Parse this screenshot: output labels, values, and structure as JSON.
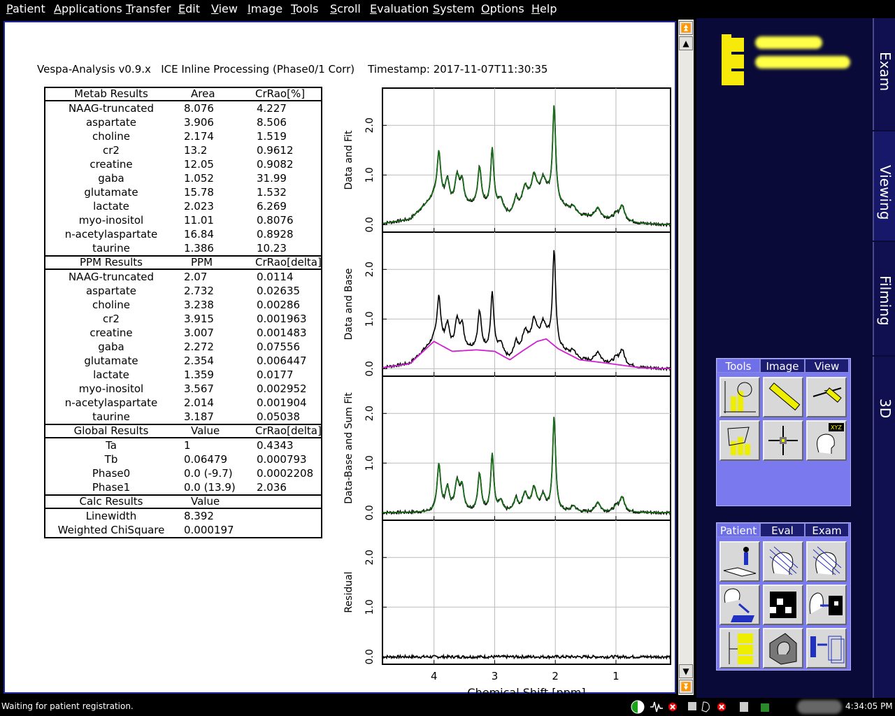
{
  "menubar": [
    {
      "u": "P",
      "rest": "atient"
    },
    {
      "u": "A",
      "rest": "pplications"
    },
    {
      "u": "T",
      "rest": "ransfer"
    },
    {
      "u": "E",
      "rest": "dit"
    },
    {
      "u": "V",
      "rest": "iew"
    },
    {
      "u": "I",
      "rest": "mage"
    },
    {
      "u": "T",
      "rest": "ools"
    },
    {
      "u": "S",
      "rest": "croll"
    },
    {
      "u": "E",
      "rest": "valuation"
    },
    {
      "u": "S",
      "rest": "ystem"
    },
    {
      "u": "O",
      "rest": "ptions"
    },
    {
      "u": "H",
      "rest": "elp"
    }
  ],
  "report": {
    "header": "Vespa-Analysis v0.9.x   ICE Inline Processing (Phase0/1 Corr)    Timestamp: 2017-11-07T11:30:35",
    "sections": [
      {
        "headers": [
          "Metab Results",
          "Area",
          "CrRao[%]"
        ],
        "rows": [
          [
            "NAAG-truncated",
            "8.076",
            "4.227"
          ],
          [
            "aspartate",
            "3.906",
            "8.506"
          ],
          [
            "choline",
            "2.174",
            "1.519"
          ],
          [
            "cr2",
            "13.2",
            "0.9612"
          ],
          [
            "creatine",
            "12.05",
            "0.9082"
          ],
          [
            "gaba",
            "1.052",
            "31.99"
          ],
          [
            "glutamate",
            "15.78",
            "1.532"
          ],
          [
            "lactate",
            "2.023",
            "6.269"
          ],
          [
            "myo-inositol",
            "11.01",
            "0.8076"
          ],
          [
            "n-acetylaspartate",
            "16.84",
            "0.8928"
          ],
          [
            "taurine",
            "1.386",
            "10.23"
          ]
        ]
      },
      {
        "headers": [
          "PPM Results",
          "PPM",
          "CrRao[delta]"
        ],
        "rows": [
          [
            "NAAG-truncated",
            "2.07",
            "0.0114"
          ],
          [
            "aspartate",
            "2.732",
            "0.02635"
          ],
          [
            "choline",
            "3.238",
            "0.00286"
          ],
          [
            "cr2",
            "3.915",
            "0.001963"
          ],
          [
            "creatine",
            "3.007",
            "0.001483"
          ],
          [
            "gaba",
            "2.272",
            "0.07556"
          ],
          [
            "glutamate",
            "2.354",
            "0.006447"
          ],
          [
            "lactate",
            "1.359",
            "0.0177"
          ],
          [
            "myo-inositol",
            "3.567",
            "0.002952"
          ],
          [
            "n-acetylaspartate",
            "2.014",
            "0.001904"
          ],
          [
            "taurine",
            "3.187",
            "0.05038"
          ]
        ]
      },
      {
        "headers": [
          "Global Results",
          "Value",
          "CrRao[delta]"
        ],
        "rows": [
          [
            "Ta",
            "1",
            "0.4343"
          ],
          [
            "Tb",
            "0.06479",
            "0.000793"
          ],
          [
            "Phase0",
            "0.0 (-9.7)",
            "0.0002208"
          ],
          [
            "Phase1",
            "0.0 (13.9)",
            "2.036"
          ]
        ]
      },
      {
        "headers": [
          "Calc Results",
          "Value",
          ""
        ],
        "rows": [
          [
            "Linewidth",
            "8.392",
            ""
          ],
          [
            "Weighted ChiSquare",
            "0.000197",
            ""
          ]
        ]
      }
    ]
  },
  "chart_data": {
    "type": "line",
    "xlabel": "Chemical Shift [ppm]",
    "x_reversed": true,
    "xlim": [
      4.85,
      0.1
    ],
    "xticks": [
      "4",
      "3",
      "2",
      "1"
    ],
    "yticks": [
      "0.0",
      "1.0",
      "2.0"
    ],
    "ylim": [
      -0.15,
      2.75
    ],
    "grid": true,
    "panels": [
      {
        "ylabel": "Data and Fit",
        "series": [
          {
            "name": "data",
            "color": "#000000",
            "peaks": "full"
          },
          {
            "name": "fit",
            "color": "#1a6b1a",
            "peaks": "full"
          }
        ]
      },
      {
        "ylabel": "Data and Base",
        "series": [
          {
            "name": "data",
            "color": "#000000",
            "peaks": "full"
          },
          {
            "name": "baseline",
            "color": "#d020d0",
            "peaks": "base"
          }
        ]
      },
      {
        "ylabel": "Data-Base and Sum Fit",
        "series": [
          {
            "name": "data-base",
            "color": "#000000",
            "peaks": "minusbase"
          },
          {
            "name": "sum fit",
            "color": "#1a6b1a",
            "peaks": "minusbase"
          }
        ]
      },
      {
        "ylabel": "Residual",
        "series": [
          {
            "name": "residual",
            "color": "#000000",
            "peaks": "noise"
          }
        ]
      }
    ],
    "peaks": [
      {
        "ppm": 3.92,
        "h": 0.95,
        "w": 0.035
      },
      {
        "ppm": 3.78,
        "h": 0.45,
        "w": 0.04
      },
      {
        "ppm": 3.62,
        "h": 0.55,
        "w": 0.045
      },
      {
        "ppm": 3.54,
        "h": 0.45,
        "w": 0.04
      },
      {
        "ppm": 3.25,
        "h": 0.75,
        "w": 0.035
      },
      {
        "ppm": 3.04,
        "h": 1.15,
        "w": 0.03
      },
      {
        "ppm": 2.9,
        "h": 0.2,
        "w": 0.04
      },
      {
        "ppm": 2.65,
        "h": 0.25,
        "w": 0.04
      },
      {
        "ppm": 2.5,
        "h": 0.35,
        "w": 0.05
      },
      {
        "ppm": 2.35,
        "h": 0.45,
        "w": 0.05
      },
      {
        "ppm": 2.2,
        "h": 0.3,
        "w": 0.05
      },
      {
        "ppm": 2.02,
        "h": 1.9,
        "w": 0.03
      },
      {
        "ppm": 1.7,
        "h": 0.12,
        "w": 0.05
      },
      {
        "ppm": 1.3,
        "h": 0.2,
        "w": 0.05
      },
      {
        "ppm": 1.0,
        "h": 0.1,
        "w": 0.05
      },
      {
        "ppm": 0.9,
        "h": 0.3,
        "w": 0.05
      }
    ],
    "baseline": [
      {
        "ppm": 4.85,
        "v": 0.02
      },
      {
        "ppm": 4.4,
        "v": 0.1
      },
      {
        "ppm": 4.0,
        "v": 0.55
      },
      {
        "ppm": 3.7,
        "v": 0.35
      },
      {
        "ppm": 3.3,
        "v": 0.38
      },
      {
        "ppm": 3.0,
        "v": 0.35
      },
      {
        "ppm": 2.75,
        "v": 0.18
      },
      {
        "ppm": 2.55,
        "v": 0.35
      },
      {
        "ppm": 2.3,
        "v": 0.55
      },
      {
        "ppm": 2.15,
        "v": 0.6
      },
      {
        "ppm": 1.95,
        "v": 0.4
      },
      {
        "ppm": 1.6,
        "v": 0.18
      },
      {
        "ppm": 1.2,
        "v": 0.12
      },
      {
        "ppm": 0.6,
        "v": 0.02
      },
      {
        "ppm": 0.1,
        "v": 0.0
      }
    ]
  },
  "right": {
    "vtabs": [
      "Exam",
      "Viewing",
      "Filming",
      "3D"
    ],
    "tools_tabs": [
      "Tools",
      "Image",
      "View"
    ],
    "tools_buttons": [
      "roi-statistics",
      "distance",
      "angle",
      "roi-histogram",
      "crosshair",
      "patient-coordinates"
    ],
    "patient_tabs": [
      "Patient",
      "Eval",
      "Exam"
    ],
    "patient_buttons": [
      "patient-registration",
      "patient-browser",
      "exam-explorer",
      "import",
      "layout",
      "export",
      "folder-tree",
      "archive",
      "transfer"
    ]
  },
  "status": {
    "message": "Waiting for patient registration.",
    "time": "4:34:05 PM"
  }
}
